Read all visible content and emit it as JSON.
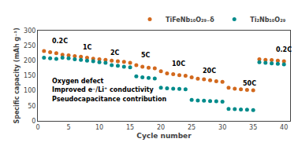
{
  "chart_data": {
    "type": "scatter",
    "xlabel": "Cycle number",
    "ylabel": "Specific capacity (mAh g⁻¹)",
    "xlim": [
      0,
      41
    ],
    "ylim": [
      0,
      300
    ],
    "xticks": [
      0,
      5,
      10,
      15,
      20,
      25,
      30,
      35,
      40
    ],
    "yticks": [
      0,
      50,
      100,
      150,
      200,
      250,
      300
    ],
    "grid": false,
    "legend": "top right",
    "marker": "circle",
    "series": [
      {
        "name": "TiFeNb₁₀O₂₉₋δ",
        "color": "#D2691E",
        "x": [
          1,
          2,
          3,
          4,
          5,
          6,
          7,
          8,
          9,
          10,
          11,
          12,
          13,
          14,
          15,
          16,
          17,
          18,
          19,
          20,
          21,
          22,
          23,
          24,
          25,
          26,
          27,
          28,
          29,
          30,
          31,
          32,
          33,
          34,
          35,
          36,
          37,
          38,
          39,
          40
        ],
        "values": [
          232,
          228,
          225,
          220,
          218,
          215,
          213,
          210,
          207,
          205,
          203,
          200,
          198,
          196,
          193,
          185,
          180,
          177,
          175,
          165,
          158,
          155,
          152,
          150,
          145,
          140,
          138,
          135,
          132,
          130,
          110,
          107,
          105,
          103,
          102,
          205,
          203,
          202,
          200,
          198
        ]
      },
      {
        "name": "Ti₂Nb₁₀O₂₉",
        "color": "#008B8B",
        "x": [
          1,
          2,
          3,
          4,
          5,
          6,
          7,
          8,
          9,
          10,
          11,
          12,
          13,
          14,
          15,
          16,
          17,
          18,
          19,
          20,
          21,
          22,
          23,
          24,
          25,
          26,
          27,
          28,
          29,
          30,
          31,
          32,
          33,
          34,
          35,
          36,
          37,
          38,
          39,
          40
        ],
        "values": [
          210,
          208,
          206,
          210,
          208,
          205,
          203,
          200,
          198,
          195,
          193,
          185,
          183,
          180,
          178,
          148,
          145,
          143,
          141,
          110,
          108,
          107,
          106,
          105,
          70,
          68,
          67,
          66,
          65,
          64,
          40,
          39,
          38,
          37,
          36,
          195,
          193,
          191,
          190,
          188
        ]
      }
    ],
    "annotations": [
      {
        "text": "0.2C",
        "x": 2.0,
        "y": 248
      },
      {
        "text": "1C",
        "x": 7.0,
        "y": 228
      },
      {
        "text": "2C",
        "x": 11.5,
        "y": 210
      },
      {
        "text": "5C",
        "x": 16.5,
        "y": 200
      },
      {
        "text": "10C",
        "x": 21.5,
        "y": 172
      },
      {
        "text": "20C",
        "x": 26.5,
        "y": 148
      },
      {
        "text": "50C",
        "x": 33.0,
        "y": 108
      },
      {
        "text": "0.2C",
        "x": 38.5,
        "y": 218
      },
      {
        "text": "Oxygen defect",
        "x": 2,
        "y": 115
      },
      {
        "text": "Improved e⁻/Li⁺ conductivity",
        "x": 2,
        "y": 85
      },
      {
        "text": "Pseudocapacitance contribution",
        "x": 2,
        "y": 55
      }
    ]
  }
}
